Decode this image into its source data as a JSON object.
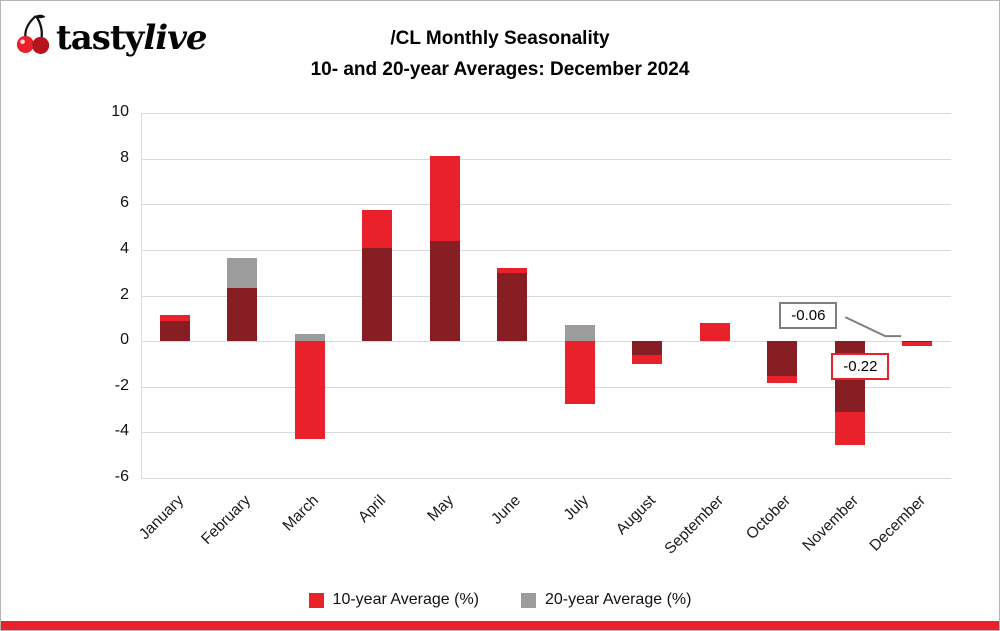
{
  "logo": {
    "tasty": "tasty",
    "live": "live"
  },
  "title": {
    "line1": "/CL Monthly Seasonality",
    "line2": "10- and 20-year Averages: December 2024"
  },
  "colors": {
    "brand_red": "#e8212b",
    "overlap_dark": "#871e24",
    "series_gray": "#9c9c9c",
    "gridline": "#d9d9d9",
    "annotation_gray_border": "#7f7f7f"
  },
  "chart_data": {
    "type": "bar",
    "title": "/CL Monthly Seasonality",
    "subtitle": "10- and 20-year Averages: December 2024",
    "categories": [
      "January",
      "February",
      "March",
      "April",
      "May",
      "June",
      "July",
      "August",
      "September",
      "October",
      "November",
      "December"
    ],
    "series": [
      {
        "name": "10-year Average (%)",
        "color": "#e8212b",
        "values": [
          1.15,
          2.35,
          -4.3,
          5.75,
          8.1,
          3.2,
          -2.75,
          -1.0,
          0.8,
          -1.85,
          -4.55,
          -0.22
        ]
      },
      {
        "name": "20-year Average (%)",
        "color": "#9c9c9c",
        "values": [
          0.9,
          3.65,
          0.3,
          4.1,
          4.4,
          3.0,
          0.7,
          -0.6,
          0.0,
          -1.55,
          -3.1,
          -0.06
        ]
      }
    ],
    "overlap_color": "#871e24",
    "ylim": [
      -6,
      10
    ],
    "yticks": [
      -6,
      -4,
      -2,
      0,
      2,
      4,
      6,
      8,
      10
    ],
    "grid": "horizontal",
    "legend_position": "bottom",
    "annotations": [
      {
        "text": "-0.06",
        "month": "December",
        "series": "20-year Average (%)",
        "box": "gray"
      },
      {
        "text": "-0.22",
        "month": "December",
        "series": "10-year Average (%)",
        "box": "red"
      }
    ]
  },
  "legend": {
    "items": [
      {
        "label": "10-year Average (%)",
        "color": "#e8212b"
      },
      {
        "label": "20-year Average (%)",
        "color": "#9c9c9c"
      }
    ]
  }
}
